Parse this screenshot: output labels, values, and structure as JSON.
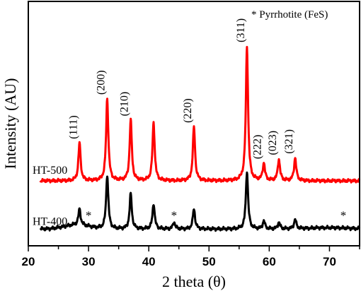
{
  "chart_data": {
    "type": "line",
    "title": "",
    "xlabel": "2 theta (θ)",
    "ylabel": "Intensity (AU)",
    "xlim": [
      20,
      75
    ],
    "x_ticks": [
      20,
      30,
      40,
      50,
      60,
      70
    ],
    "y_ticks_shown": false,
    "grid": false,
    "legend_note": "* Pyrrhotite (FeS)",
    "series": [
      {
        "name": "HT-500",
        "color": "#ff0000",
        "baseline_level": 0.1,
        "peaks": [
          {
            "x": 28.5,
            "intensity": 0.28
          },
          {
            "x": 33.1,
            "intensity": 0.61
          },
          {
            "x": 37.0,
            "intensity": 0.45
          },
          {
            "x": 40.8,
            "intensity": 0.43
          },
          {
            "x": 47.5,
            "intensity": 0.4
          },
          {
            "x": 56.3,
            "intensity": 1.0
          },
          {
            "x": 59.1,
            "intensity": 0.13
          },
          {
            "x": 61.6,
            "intensity": 0.16
          },
          {
            "x": 64.3,
            "intensity": 0.17
          }
        ]
      },
      {
        "name": "HT-400",
        "color": "#000000",
        "baseline_level": 0.03,
        "peaks": [
          {
            "x": 28.5,
            "intensity": 0.12
          },
          {
            "x": 33.1,
            "intensity": 0.4
          },
          {
            "x": 37.0,
            "intensity": 0.26
          },
          {
            "x": 40.8,
            "intensity": 0.19
          },
          {
            "x": 44.2,
            "intensity": 0.05
          },
          {
            "x": 47.5,
            "intensity": 0.15
          },
          {
            "x": 56.3,
            "intensity": 0.43
          },
          {
            "x": 59.1,
            "intensity": 0.06
          },
          {
            "x": 61.6,
            "intensity": 0.05
          },
          {
            "x": 64.3,
            "intensity": 0.07
          }
        ]
      }
    ],
    "peak_labels": [
      {
        "text": "(111)",
        "x": 28.5
      },
      {
        "text": "(200)",
        "x": 33.1
      },
      {
        "text": "(210)",
        "x": 37.0
      },
      {
        "text": "(220)",
        "x": 47.5
      },
      {
        "text": "(311)",
        "x": 56.3
      },
      {
        "text": "(222)",
        "x": 59.1
      },
      {
        "text": "(023)",
        "x": 61.6
      },
      {
        "text": "(321)",
        "x": 64.3
      }
    ],
    "impurity_markers": [
      {
        "text": "*",
        "x": 30.0
      },
      {
        "text": "*",
        "x": 44.2
      },
      {
        "text": "*",
        "x": 72.3
      }
    ]
  }
}
